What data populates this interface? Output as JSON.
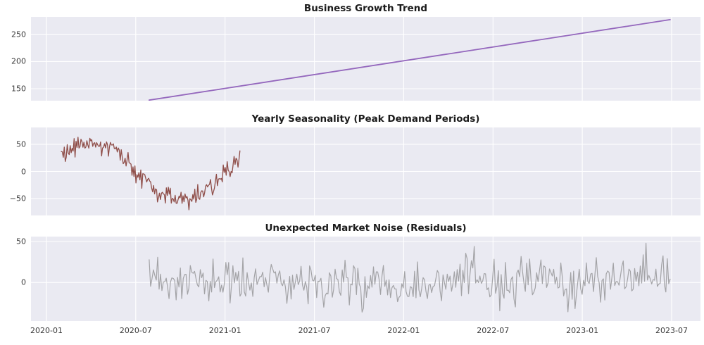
{
  "figure": {
    "background": "#ffffff",
    "panel_background": "#eaeaf2",
    "grid_color": "#ffffff",
    "title_color": "#1b1b1b",
    "tick_label_color": "#3a3a3a"
  },
  "x_axis": {
    "xlim_months": [
      -1.04,
      43.94
    ],
    "ticks": [
      {
        "month": 0,
        "label": "2020-01"
      },
      {
        "month": 6,
        "label": "2020-07"
      },
      {
        "month": 12,
        "label": "2021-01"
      },
      {
        "month": 18,
        "label": "2021-07"
      },
      {
        "month": 24,
        "label": "2022-01"
      },
      {
        "month": 30,
        "label": "2022-07"
      },
      {
        "month": 36,
        "label": "2023-01"
      },
      {
        "month": 42,
        "label": "2023-07"
      }
    ]
  },
  "chart_data": [
    {
      "type": "line",
      "title": "Business Growth Trend",
      "color": "#9467bd",
      "line_width": 1.8,
      "ylim": [
        128,
        282
      ],
      "grid": true,
      "y_ticks": [
        {
          "value": 150,
          "label": "150"
        },
        {
          "value": 200,
          "label": "200"
        },
        {
          "value": 250,
          "label": "250"
        }
      ],
      "series": {
        "name": "Trend",
        "kind": "straight",
        "x_months": [
          6.9,
          41.9
        ],
        "values": [
          129,
          277
        ]
      }
    },
    {
      "type": "line",
      "title": "Yearly Seasonality (Peak Demand Periods)",
      "color": "#8f4e49",
      "line_width": 1.3,
      "ylim": [
        -81,
        81
      ],
      "grid": true,
      "y_ticks": [
        {
          "value": 50,
          "label": "50"
        },
        {
          "value": 0,
          "label": "0"
        },
        {
          "value": -50,
          "label": "−50"
        }
      ],
      "series": {
        "name": "Seasonality",
        "kind": "sine_plus_noise",
        "start_month": 1.0,
        "end_month": 13.0,
        "points": 183,
        "amplitude": 52,
        "period_months": 12,
        "phase_month": 0,
        "noise_std": 10,
        "noise_clip": 21,
        "seed": 9,
        "observed_peak": 75,
        "observed_trough": -72
      }
    },
    {
      "type": "line",
      "title": "Unexpected Market Noise (Residuals)",
      "color": "#a3a3a6",
      "line_width": 1.2,
      "ylim": [
        -47,
        56
      ],
      "grid": true,
      "y_ticks": [
        {
          "value": 0,
          "label": "0"
        },
        {
          "value": 50,
          "label": "50"
        }
      ],
      "series": {
        "name": "Residuals",
        "kind": "gaussian_noise",
        "start_month": 6.9,
        "end_month": 41.9,
        "points": 368,
        "mean": 0,
        "noise_std": 14,
        "noise_clip": 44,
        "seed": 23,
        "spikes": [
          {
            "month": 40.25,
            "value": 48
          }
        ],
        "observed_range": [
          -44,
          48
        ]
      }
    }
  ]
}
